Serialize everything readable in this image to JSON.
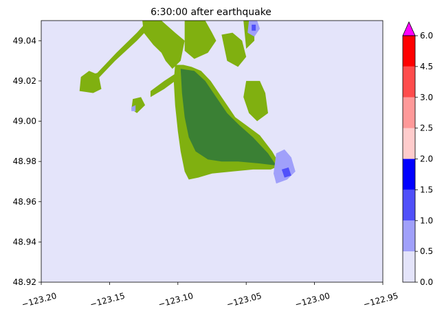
{
  "chart_data": {
    "type": "heatmap",
    "title": "6:30:00 after earthquake",
    "xlabel": "",
    "ylabel": "",
    "xlim": [
      -123.2,
      -122.95
    ],
    "ylim": [
      48.92,
      49.05
    ],
    "x_ticks": [
      {
        "value": -123.2,
        "label": "−123.20"
      },
      {
        "value": -123.15,
        "label": "−123.15"
      },
      {
        "value": -123.1,
        "label": "−123.10"
      },
      {
        "value": -123.05,
        "label": "−123.05"
      },
      {
        "value": -123.0,
        "label": "−123.00"
      },
      {
        "value": -122.95,
        "label": "−122.95"
      }
    ],
    "y_ticks": [
      {
        "value": 48.92,
        "label": "48.92"
      },
      {
        "value": 48.94,
        "label": "48.94"
      },
      {
        "value": 48.96,
        "label": "48.96"
      },
      {
        "value": 48.98,
        "label": "48.98"
      },
      {
        "value": 49.0,
        "label": "49.00"
      },
      {
        "value": 49.02,
        "label": "49.02"
      },
      {
        "value": 49.04,
        "label": "49.04"
      }
    ],
    "background_color": "#e4e4fa",
    "colorbar": {
      "levels": [
        0.0,
        0.5,
        1.0,
        1.5,
        2.0,
        2.5,
        3.0,
        4.5,
        6.0
      ],
      "tick_labels": [
        "0.0",
        "0.5",
        "1.0",
        "1.5",
        "2.0",
        "2.5",
        "3.0",
        "4.5",
        "6.0"
      ],
      "colors": [
        "#e4e4fa",
        "#a0a0fa",
        "#5050fa",
        "#0000ff",
        "#ffcccc",
        "#ff9999",
        "#ff4c4c",
        "#ff0000"
      ],
      "extend_max_color": "#ff00ff"
    },
    "land": {
      "low_color": "#80b010",
      "high_color": "#3a8034",
      "regions": [
        {
          "name": "peninsula",
          "color": "#80b010",
          "polygon": [
            [
              -123.102,
              49.028
            ],
            [
              -123.096,
              49.028
            ],
            [
              -123.09,
              49.027
            ],
            [
              -123.083,
              49.025
            ],
            [
              -123.076,
              49.02
            ],
            [
              -123.07,
              49.014
            ],
            [
              -123.064,
              49.008
            ],
            [
              -123.058,
              49.002
            ],
            [
              -123.05,
              48.998
            ],
            [
              -123.04,
              48.993
            ],
            [
              -123.031,
              48.985
            ],
            [
              -123.025,
              48.978
            ],
            [
              -123.032,
              48.976
            ],
            [
              -123.045,
              48.976
            ],
            [
              -123.06,
              48.975
            ],
            [
              -123.075,
              48.974
            ],
            [
              -123.085,
              48.972
            ],
            [
              -123.092,
              48.971
            ],
            [
              -123.095,
              48.975
            ],
            [
              -123.098,
              48.985
            ],
            [
              -123.1,
              48.995
            ],
            [
              -123.102,
              49.008
            ],
            [
              -123.103,
              49.02
            ]
          ]
        },
        {
          "name": "peninsula-high-ground",
          "color": "#3a8034",
          "polygon": [
            [
              -123.098,
              49.026
            ],
            [
              -123.088,
              49.025
            ],
            [
              -123.08,
              49.02
            ],
            [
              -123.072,
              49.012
            ],
            [
              -123.064,
              49.004
            ],
            [
              -123.055,
              48.998
            ],
            [
              -123.045,
              48.992
            ],
            [
              -123.034,
              48.984
            ],
            [
              -123.028,
              48.978
            ],
            [
              -123.04,
              48.979
            ],
            [
              -123.056,
              48.98
            ],
            [
              -123.068,
              48.98
            ],
            [
              -123.078,
              48.981
            ],
            [
              -123.087,
              48.985
            ],
            [
              -123.092,
              48.992
            ],
            [
              -123.095,
              49.002
            ],
            [
              -123.097,
              49.014
            ]
          ]
        },
        {
          "name": "north-strip",
          "color": "#80b010",
          "polygon": [
            [
              -123.126,
              49.05
            ],
            [
              -123.112,
              49.05
            ],
            [
              -123.102,
              49.044
            ],
            [
              -123.095,
              49.04
            ],
            [
              -123.098,
              49.03
            ],
            [
              -123.104,
              49.026
            ],
            [
              -123.109,
              49.03
            ],
            [
              -123.112,
              49.034
            ],
            [
              -123.118,
              49.038
            ],
            [
              -123.125,
              49.044
            ]
          ]
        },
        {
          "name": "north-east-land",
          "color": "#80b010",
          "polygon": [
            [
              -123.095,
              49.05
            ],
            [
              -123.08,
              49.05
            ],
            [
              -123.075,
              49.044
            ],
            [
              -123.072,
              49.04
            ],
            [
              -123.078,
              49.034
            ],
            [
              -123.088,
              49.031
            ],
            [
              -123.095,
              49.035
            ]
          ]
        },
        {
          "name": "north-central-land",
          "color": "#80b010",
          "polygon": [
            [
              -123.068,
              49.043
            ],
            [
              -123.06,
              49.044
            ],
            [
              -123.053,
              49.04
            ],
            [
              -123.05,
              49.032
            ],
            [
              -123.056,
              49.027
            ],
            [
              -123.064,
              49.03
            ]
          ]
        },
        {
          "name": "north-right-land",
          "color": "#80b010",
          "polygon": [
            [
              -123.052,
              49.05
            ],
            [
              -123.044,
              49.05
            ],
            [
              -123.044,
              49.04
            ],
            [
              -123.05,
              49.036
            ]
          ]
        },
        {
          "name": "diagonal-strip",
          "color": "#80b010",
          "polygon": [
            [
              -123.165,
              49.023
            ],
            [
              -123.159,
              49.024
            ],
            [
              -123.145,
              49.034
            ],
            [
              -123.13,
              49.044
            ],
            [
              -123.122,
              49.05
            ],
            [
              -123.116,
              49.05
            ],
            [
              -123.13,
              49.04
            ],
            [
              -123.146,
              49.03
            ],
            [
              -123.16,
              49.02
            ]
          ]
        },
        {
          "name": "west-island",
          "color": "#80b010",
          "polygon": [
            [
              -123.171,
              49.022
            ],
            [
              -123.165,
              49.025
            ],
            [
              -123.158,
              49.023
            ],
            [
              -123.156,
              49.016
            ],
            [
              -123.162,
              49.014
            ],
            [
              -123.172,
              49.015
            ]
          ]
        },
        {
          "name": "middle-spit",
          "color": "#80b010",
          "polygon": [
            [
              -123.12,
              49.015
            ],
            [
              -123.11,
              49.02
            ],
            [
              -123.101,
              49.024
            ],
            [
              -123.1,
              49.021
            ],
            [
              -123.11,
              49.016
            ],
            [
              -123.12,
              49.012
            ]
          ]
        },
        {
          "name": "small-island",
          "color": "#80b010",
          "polygon": [
            [
              -123.133,
              49.011
            ],
            [
              -123.127,
              49.012
            ],
            [
              -123.124,
              49.008
            ],
            [
              -123.13,
              49.004
            ],
            [
              -123.134,
              49.006
            ]
          ]
        },
        {
          "name": "east-land-patches",
          "color": "#80b010",
          "polygon": [
            [
              -123.05,
              49.02
            ],
            [
              -123.04,
              49.02
            ],
            [
              -123.036,
              49.014
            ],
            [
              -123.034,
              49.004
            ],
            [
              -123.042,
              49.0
            ],
            [
              -123.048,
              49.004
            ],
            [
              -123.052,
              49.012
            ]
          ]
        }
      ]
    },
    "wave_patches": [
      {
        "name": "north-flood",
        "color": "#a0a0fa",
        "polygon": [
          [
            -123.048,
            49.05
          ],
          [
            -123.042,
            49.05
          ],
          [
            -123.04,
            49.046
          ],
          [
            -123.044,
            49.042
          ],
          [
            -123.049,
            49.044
          ]
        ]
      },
      {
        "name": "north-flood-core",
        "color": "#5050fa",
        "polygon": [
          [
            -123.046,
            49.048
          ],
          [
            -123.043,
            49.048
          ],
          [
            -123.043,
            49.045
          ],
          [
            -123.046,
            49.045
          ]
        ]
      },
      {
        "name": "east-shore-flood",
        "color": "#a0a0fa",
        "polygon": [
          [
            -123.028,
            48.984
          ],
          [
            -123.022,
            48.986
          ],
          [
            -123.017,
            48.982
          ],
          [
            -123.014,
            48.975
          ],
          [
            -123.02,
            48.971
          ],
          [
            -123.028,
            48.969
          ],
          [
            -123.03,
            48.974
          ]
        ]
      },
      {
        "name": "east-shore-flood-core",
        "color": "#5050fa",
        "polygon": [
          [
            -123.024,
            48.976
          ],
          [
            -123.019,
            48.977
          ],
          [
            -123.017,
            48.973
          ],
          [
            -123.022,
            48.972
          ]
        ]
      },
      {
        "name": "small-west-flood",
        "color": "#a0a0fa",
        "polygon": [
          [
            -123.134,
            49.007
          ],
          [
            -123.131,
            49.008
          ],
          [
            -123.131,
            49.005
          ],
          [
            -123.134,
            49.005
          ]
        ]
      }
    ]
  }
}
